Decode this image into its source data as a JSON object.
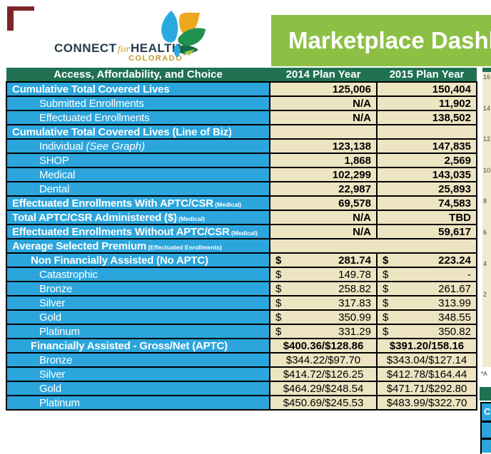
{
  "logo": {
    "connect": "CONNECT",
    "for": "for",
    "health": "HEALTH",
    "colorado": "COLORADO",
    "tm": "™"
  },
  "banner": {
    "title": "Marketplace Dashboard"
  },
  "table": {
    "headers": [
      "Access, Affordability, and Choice",
      "2014 Plan Year",
      "2015 Plan Year"
    ],
    "rows": [
      {
        "label": "Cumulative Total Covered Lives",
        "indent": 0,
        "bold": true,
        "type": "num",
        "v2014": "125,006",
        "v2015": "150,404"
      },
      {
        "label": "Submitted Enrollments",
        "indent": 2,
        "bold": false,
        "type": "num",
        "v2014": "N/A",
        "v2015": "11,902"
      },
      {
        "label": "Effectuated Enrollments",
        "indent": 2,
        "bold": false,
        "type": "num",
        "v2014": "N/A",
        "v2015": "138,502"
      },
      {
        "label": "Cumulative Total Covered Lives (Line of Biz)",
        "indent": 0,
        "bold": true,
        "type": "num",
        "v2014": "",
        "v2015": ""
      },
      {
        "label": "Individual",
        "italic": "(See Graph)",
        "indent": 2,
        "bold": false,
        "type": "num",
        "v2014": "123,138",
        "v2015": "147,835"
      },
      {
        "label": "SHOP",
        "indent": 2,
        "bold": false,
        "type": "num",
        "v2014": "1,868",
        "v2015": "2,569"
      },
      {
        "label": "Medical",
        "indent": 2,
        "bold": false,
        "type": "num",
        "v2014": "102,299",
        "v2015": "143,035"
      },
      {
        "label": "Dental",
        "indent": 2,
        "bold": false,
        "type": "num",
        "v2014": "22,987",
        "v2015": "25,893"
      },
      {
        "label": "Effectuated Enrollments With APTC/CSR",
        "suffix": "(Medical)",
        "indent": 0,
        "bold": true,
        "type": "num",
        "v2014": "69,578",
        "v2015": "74,583"
      },
      {
        "label": "Total APTC/CSR Administered ($)",
        "suffix": "(Medical)",
        "indent": 0,
        "bold": true,
        "type": "num",
        "v2014": "N/A",
        "v2015": "TBD"
      },
      {
        "label": "Effectuated Enrollments Without APTC/CSR",
        "suffix": "(Medical)",
        "indent": 0,
        "bold": true,
        "type": "num",
        "v2014": "N/A",
        "v2015": "59,617"
      },
      {
        "label": "Average Selected Premium",
        "suffix": "(Effectuated Enrollments)",
        "indent": 0,
        "bold": true,
        "type": "merged",
        "v2014": "",
        "v2015": ""
      },
      {
        "label": "Non Financially Assisted (No APTC)",
        "indent": 1,
        "bold": true,
        "type": "money",
        "v2014": "281.74",
        "v2015": "223.24"
      },
      {
        "label": "Catastrophic",
        "indent": 2,
        "bold": false,
        "type": "money",
        "v2014": "149.78",
        "v2015": "-"
      },
      {
        "label": "Bronze",
        "indent": 2,
        "bold": false,
        "type": "money",
        "v2014": "258.82",
        "v2015": "261.67"
      },
      {
        "label": "Silver",
        "indent": 2,
        "bold": false,
        "type": "money",
        "v2014": "317.83",
        "v2015": "313.99"
      },
      {
        "label": "Gold",
        "indent": 2,
        "bold": false,
        "type": "money",
        "v2014": "350.99",
        "v2015": "348.55"
      },
      {
        "label": "Platinum",
        "indent": 2,
        "bold": false,
        "type": "money",
        "v2014": "331.29",
        "v2015": "350.82"
      },
      {
        "label": "Financially Assisted - Gross/Net (APTC)",
        "indent": 1,
        "bold": true,
        "type": "center",
        "v2014": "$400.36/$128.86",
        "v2015": "$391.20/158.16"
      },
      {
        "label": "Bronze",
        "indent": 2,
        "bold": false,
        "type": "center",
        "v2014": "$344.22/$97.70",
        "v2015": "$343.04/$127.14"
      },
      {
        "label": "Silver",
        "indent": 2,
        "bold": false,
        "type": "center",
        "v2014": "$414.72/$126.25",
        "v2015": "$412.78/$164.44"
      },
      {
        "label": "Gold",
        "indent": 2,
        "bold": false,
        "type": "center",
        "v2014": "$464.29/$248.54",
        "v2015": "$471.71/$292.80"
      },
      {
        "label": "Platinum",
        "indent": 2,
        "bold": false,
        "type": "center",
        "v2014": "$450.69/$245.53",
        "v2015": "$483.99/$322.70"
      }
    ]
  },
  "chart_axis": {
    "labels": [
      "16",
      "14",
      "12",
      "10",
      "8",
      "6",
      "4",
      "2"
    ]
  },
  "footnote": "*A",
  "bottom_right": {
    "first_cell": "C"
  },
  "colors": {
    "header_green": "#1F7152",
    "banner_green": "#8CC044",
    "row_blue": "#2BA5DC",
    "value_cream": "#EDE4C2",
    "chart_cream": "#F2E9D0",
    "logo_navy": "#253C4B",
    "logo_gold": "#C6992E",
    "corner_maroon": "#7D2429"
  }
}
